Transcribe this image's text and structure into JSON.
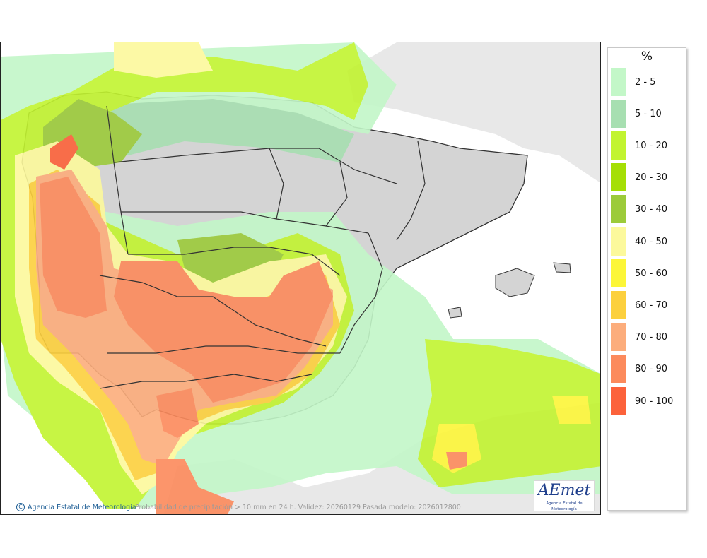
{
  "legend": {
    "title": "%",
    "items": [
      {
        "label": "2 - 5",
        "color": "#c3f7c8"
      },
      {
        "label": "5 - 10",
        "color": "#a7dfb1"
      },
      {
        "label": "10 - 20",
        "color": "#c2f430"
      },
      {
        "label": "20 - 30",
        "color": "#a5df05"
      },
      {
        "label": "30 - 40",
        "color": "#9ccb3a"
      },
      {
        "label": "40 - 50",
        "color": "#fcf99c"
      },
      {
        "label": "50 - 60",
        "color": "#fcf638"
      },
      {
        "label": "60 - 70",
        "color": "#fcd03e"
      },
      {
        "label": "70 - 80",
        "color": "#fcad7c"
      },
      {
        "label": "80 - 90",
        "color": "#fc8a5c"
      },
      {
        "label": "90 - 100",
        "color": "#fc623b"
      }
    ]
  },
  "footer": {
    "credit": "Agencia Estatal de Meteorología",
    "caption": "Probabilidad de precipitación > 10 mm en 24 h. Validez: 20260129 Pasada modelo: 2026012800",
    "copyright_symbol": "C"
  },
  "logo": {
    "brand": "AEmet",
    "subtitle": "Agencia Estatal de Meteorología"
  },
  "colors": {
    "land": "#d9d9d9",
    "sea": "#ffffff",
    "outside": "#e8e8e8",
    "border": "#333333"
  }
}
